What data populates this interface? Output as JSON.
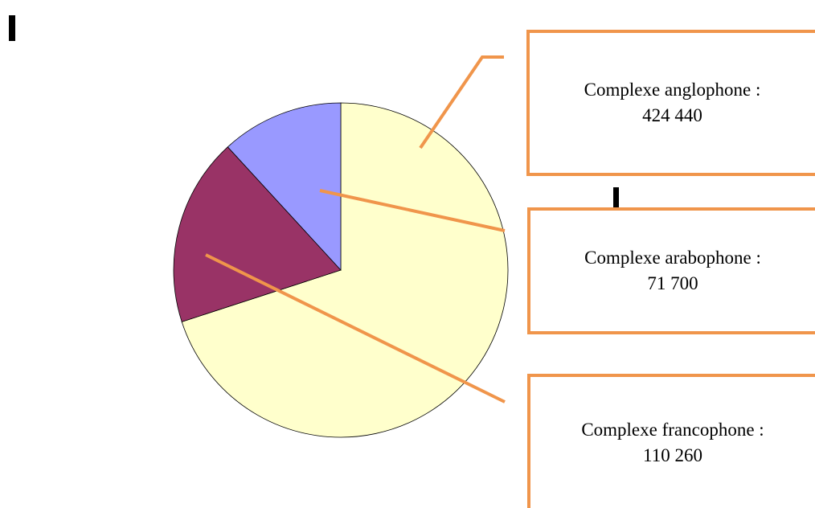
{
  "chart_data": {
    "type": "pie",
    "slices": [
      {
        "label": "Complexe anglophone",
        "value_text": "424 440",
        "value": 424440,
        "color": "#ffffcc"
      },
      {
        "label": "Complexe francophone",
        "value_text": "110 260",
        "value": 110260,
        "color": "#993366"
      },
      {
        "label": "Complexe arabophone",
        "value_text": "71 700",
        "value": 71700,
        "color": "#9999ff"
      }
    ],
    "start": "12 o'clock",
    "direction": "clockwise",
    "legend": "none",
    "callout_color": "#f0954b",
    "slice_outline_color": "#000000"
  },
  "callouts": [
    {
      "name": "Complexe anglophone :",
      "value": "424 440"
    },
    {
      "name": "Complexe arabophone :",
      "value": "71 700"
    },
    {
      "name": "Complexe francophone :",
      "value": "110 260"
    }
  ]
}
